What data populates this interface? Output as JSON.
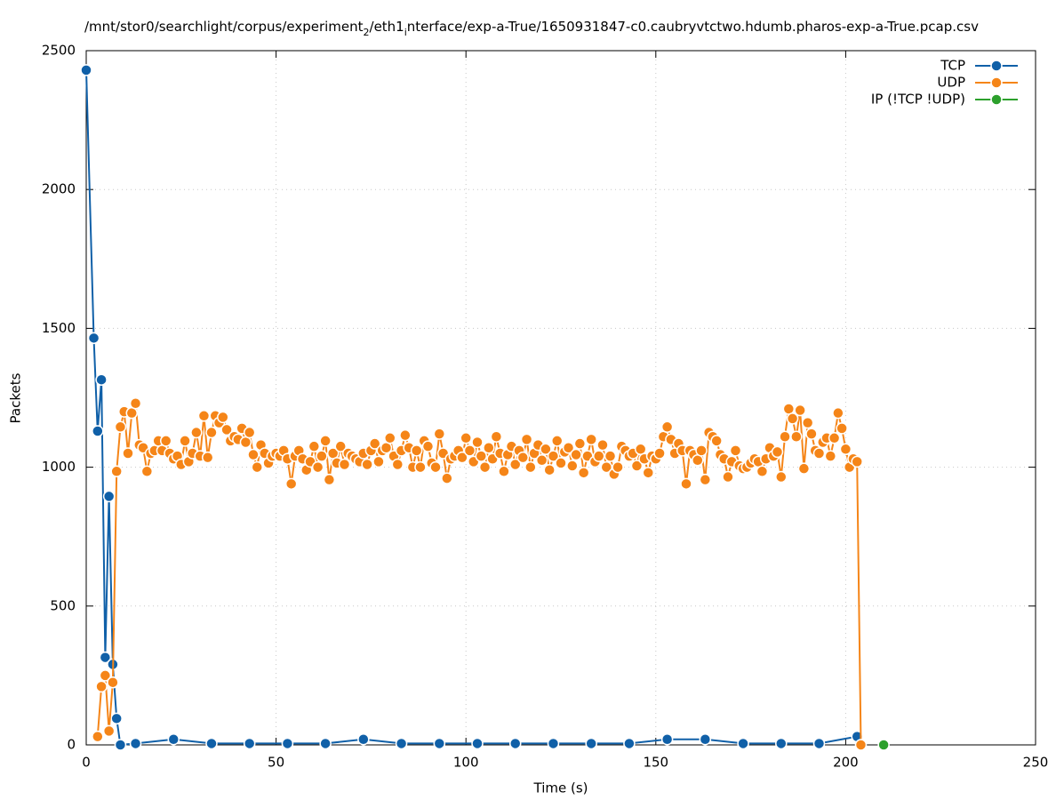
{
  "chart_data": {
    "type": "line",
    "title": [
      "/mnt/stor0/searchlight/corpus/experiment",
      "2",
      "/eth1",
      "i",
      "nterface/exp-a-True/1650931847-c0.caubryvtctwo.hdumb.pharos-exp-a-True.pcap.csv"
    ],
    "xlabel": "Time (s)",
    "ylabel": "Packets",
    "xlim": [
      0,
      250
    ],
    "xticks": [
      0,
      50,
      100,
      150,
      200,
      250
    ],
    "ylim": [
      0,
      2500
    ],
    "yticks": [
      0,
      500,
      1000,
      1500,
      2000,
      2500
    ],
    "grid": true,
    "legend": "top-right",
    "series": [
      {
        "name": "TCP",
        "color": "#1060a8",
        "x": [
          0,
          2,
          3,
          4,
          5,
          6,
          7,
          8,
          9,
          13,
          23,
          33,
          43,
          53,
          63,
          73,
          83,
          93,
          103,
          113,
          123,
          133,
          143,
          153,
          163,
          173,
          183,
          193,
          203
        ],
        "values": [
          2430,
          1465,
          1130,
          1315,
          315,
          895,
          290,
          95,
          0,
          5,
          20,
          5,
          5,
          5,
          5,
          20,
          5,
          5,
          5,
          5,
          5,
          5,
          5,
          20,
          20,
          5,
          5,
          5,
          30
        ]
      },
      {
        "name": "UDP",
        "color": "#f58518",
        "x": [
          3,
          4,
          5,
          6,
          7,
          8,
          9,
          10,
          11,
          12,
          13,
          14,
          15,
          16,
          17,
          18,
          19,
          20,
          21,
          22,
          23,
          24,
          25,
          26,
          27,
          28,
          29,
          30,
          31,
          32,
          33,
          34,
          35,
          36,
          37,
          38,
          39,
          40,
          41,
          42,
          43,
          44,
          45,
          46,
          47,
          48,
          49,
          50,
          51,
          52,
          53,
          54,
          55,
          56,
          57,
          58,
          59,
          60,
          61,
          62,
          63,
          64,
          65,
          66,
          67,
          68,
          69,
          70,
          71,
          72,
          73,
          74,
          75,
          76,
          77,
          78,
          79,
          80,
          81,
          82,
          83,
          84,
          85,
          86,
          87,
          88,
          89,
          90,
          91,
          92,
          93,
          94,
          95,
          96,
          97,
          98,
          99,
          100,
          101,
          102,
          103,
          104,
          105,
          106,
          107,
          108,
          109,
          110,
          111,
          112,
          113,
          114,
          115,
          116,
          117,
          118,
          119,
          120,
          121,
          122,
          123,
          124,
          125,
          126,
          127,
          128,
          129,
          130,
          131,
          132,
          133,
          134,
          135,
          136,
          137,
          138,
          139,
          140,
          141,
          142,
          143,
          144,
          145,
          146,
          147,
          148,
          149,
          150,
          151,
          152,
          153,
          154,
          155,
          156,
          157,
          158,
          159,
          160,
          161,
          162,
          163,
          164,
          165,
          166,
          167,
          168,
          169,
          170,
          171,
          172,
          173,
          174,
          175,
          176,
          177,
          178,
          179,
          180,
          181,
          182,
          183,
          184,
          185,
          186,
          187,
          188,
          189,
          190,
          191,
          192,
          193,
          194,
          195,
          196,
          197,
          198,
          199,
          200,
          201,
          202,
          203,
          204
        ],
        "values": [
          30,
          210,
          250,
          50,
          225,
          985,
          1145,
          1200,
          1050,
          1195,
          1230,
          1080,
          1070,
          985,
          1050,
          1060,
          1095,
          1060,
          1095,
          1050,
          1030,
          1040,
          1010,
          1095,
          1020,
          1050,
          1125,
          1040,
          1185,
          1035,
          1125,
          1185,
          1160,
          1180,
          1135,
          1095,
          1110,
          1100,
          1140,
          1090,
          1125,
          1045,
          1000,
          1080,
          1050,
          1015,
          1040,
          1050,
          1040,
          1060,
          1030,
          940,
          1040,
          1060,
          1030,
          990,
          1020,
          1075,
          1000,
          1040,
          1095,
          955,
          1050,
          1015,
          1075,
          1010,
          1050,
          1040,
          1030,
          1020,
          1050,
          1010,
          1060,
          1085,
          1020,
          1060,
          1070,
          1105,
          1040,
          1010,
          1060,
          1115,
          1070,
          1000,
          1060,
          1000,
          1095,
          1075,
          1015,
          1000,
          1120,
          1050,
          960,
          1030,
          1040,
          1060,
          1035,
          1105,
          1060,
          1020,
          1090,
          1040,
          1000,
          1070,
          1030,
          1110,
          1050,
          985,
          1045,
          1075,
          1010,
          1060,
          1035,
          1100,
          1000,
          1050,
          1080,
          1025,
          1065,
          990,
          1040,
          1095,
          1015,
          1055,
          1070,
          1005,
          1045,
          1085,
          980,
          1040,
          1100,
          1020,
          1040,
          1080,
          1000,
          1040,
          975,
          1000,
          1075,
          1060,
          1040,
          1050,
          1005,
          1065,
          1030,
          980,
          1040,
          1030,
          1050,
          1110,
          1145,
          1100,
          1050,
          1085,
          1060,
          940,
          1060,
          1045,
          1025,
          1060,
          955,
          1125,
          1110,
          1095,
          1045,
          1030,
          965,
          1020,
          1060,
          1005,
          995,
          1000,
          1015,
          1030,
          1020,
          985,
          1030,
          1070,
          1040,
          1055,
          965,
          1110,
          1210,
          1175,
          1110,
          1205,
          995,
          1160,
          1120,
          1060,
          1050,
          1090,
          1105,
          1040,
          1105,
          1195,
          1140,
          1065,
          1000,
          1030,
          1020,
          0
        ]
      },
      {
        "name": "IP (!TCP  !UDP)",
        "color": "#2ca02c",
        "x": [
          210
        ],
        "values": [
          0
        ]
      }
    ]
  }
}
